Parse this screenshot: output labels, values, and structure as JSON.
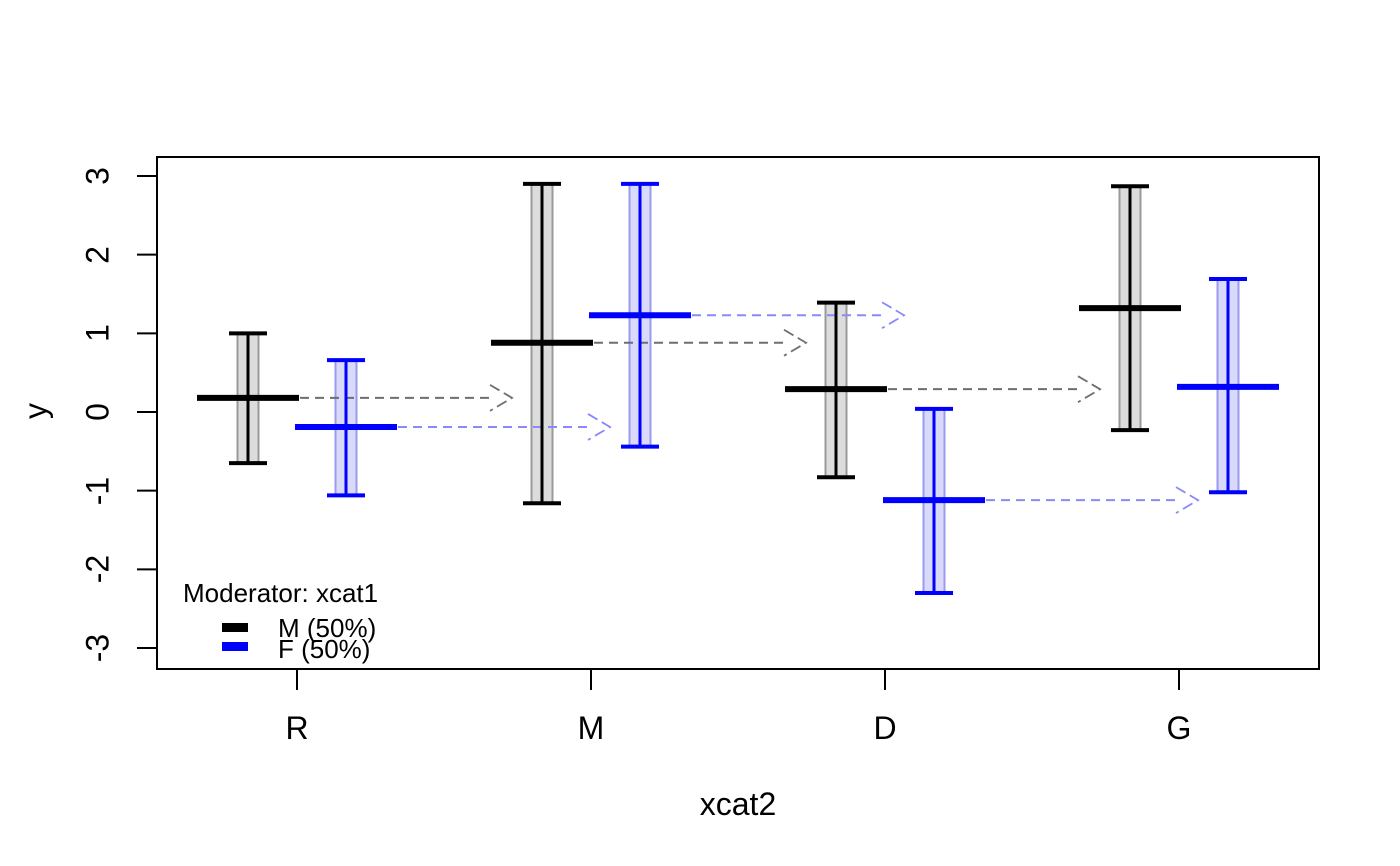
{
  "axes": {
    "y": {
      "title": "y",
      "tick_labels": [
        "3",
        "2",
        "1",
        "0",
        "-1",
        "-2",
        "-3"
      ],
      "tick_values": [
        3,
        2,
        1,
        0,
        -1,
        -2,
        -3
      ]
    },
    "x": {
      "title": "xcat2",
      "tick_labels": [
        "R",
        "M",
        "D",
        "G"
      ]
    }
  },
  "legend": {
    "title": "Moderator: xcat1",
    "items": [
      {
        "label": "M (50%)",
        "color": "#000000"
      },
      {
        "label": "F (50%)",
        "color": "#0000ff"
      }
    ]
  },
  "chart_data": {
    "type": "errorbar",
    "title": "",
    "xlabel": "xcat2",
    "ylabel": "y",
    "categories": [
      "R",
      "M",
      "D",
      "G"
    ],
    "ylim": [
      -3,
      3
    ],
    "grid": false,
    "legend_position": "bottom-left",
    "series": [
      {
        "name": "M (50%)",
        "line_color": "#000000",
        "band_fill": "#dcdcdc",
        "band_edge": "#9a9a9a",
        "arrow_color": "#6e6e6e",
        "mean": [
          0.18,
          0.88,
          0.29,
          1.32
        ],
        "lower": [
          -0.65,
          -1.16,
          -0.83,
          -0.23
        ],
        "upper": [
          1.0,
          2.9,
          1.39,
          2.87
        ]
      },
      {
        "name": "F (50%)",
        "line_color": "#0000ff",
        "band_fill": "#d9d9f9",
        "band_edge": "#9a9aef",
        "arrow_color": "#8989fb",
        "mean": [
          -0.19,
          1.23,
          -1.12,
          0.32
        ],
        "lower": [
          -1.06,
          -0.44,
          -2.3,
          -1.02
        ],
        "upper": [
          0.66,
          2.9,
          0.04,
          1.69
        ]
      }
    ],
    "annotations": "dashed horizontal arrow from each group mean pointing to the next x category"
  }
}
